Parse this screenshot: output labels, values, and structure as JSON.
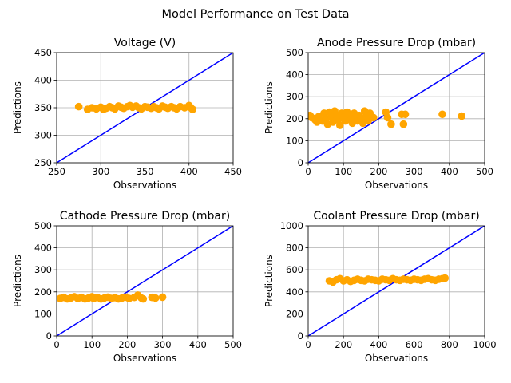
{
  "suptitle": "Model Performance on Test Data",
  "chart_data": [
    {
      "type": "scatter",
      "title": "Voltage (V)",
      "xlabel": "Observations",
      "ylabel": "Predictions",
      "xlim": [
        250,
        450
      ],
      "ylim": [
        250,
        450
      ],
      "xticks": [
        "250",
        "300",
        "350",
        "400",
        "450"
      ],
      "yticks": [
        "250",
        "300",
        "350",
        "400",
        "450"
      ],
      "grid": true,
      "reference_line": "y = x",
      "line_color": "#0000ff",
      "marker_color": "#ffa500",
      "points": [
        [
          275,
          352
        ],
        [
          285,
          347
        ],
        [
          290,
          350
        ],
        [
          295,
          348
        ],
        [
          300,
          351
        ],
        [
          303,
          347
        ],
        [
          306,
          349
        ],
        [
          310,
          352
        ],
        [
          313,
          350
        ],
        [
          316,
          348
        ],
        [
          320,
          353
        ],
        [
          323,
          351
        ],
        [
          326,
          349
        ],
        [
          330,
          352
        ],
        [
          333,
          354
        ],
        [
          336,
          351
        ],
        [
          340,
          353
        ],
        [
          343,
          350
        ],
        [
          346,
          348
        ],
        [
          350,
          352
        ],
        [
          353,
          351
        ],
        [
          357,
          349
        ],
        [
          360,
          352
        ],
        [
          363,
          350
        ],
        [
          366,
          348
        ],
        [
          370,
          353
        ],
        [
          373,
          351
        ],
        [
          376,
          349
        ],
        [
          380,
          352
        ],
        [
          383,
          350
        ],
        [
          386,
          348
        ],
        [
          390,
          352
        ],
        [
          395,
          350
        ],
        [
          400,
          354
        ],
        [
          402,
          350
        ],
        [
          404,
          347
        ]
      ]
    },
    {
      "type": "scatter",
      "title": "Anode Pressure Drop (mbar)",
      "xlabel": "Observations",
      "ylabel": "Predictions",
      "xlim": [
        0,
        500
      ],
      "ylim": [
        0,
        500
      ],
      "xticks": [
        "0",
        "100",
        "200",
        "300",
        "400",
        "500"
      ],
      "yticks": [
        "0",
        "100",
        "200",
        "300",
        "400",
        "500"
      ],
      "grid": true,
      "reference_line": "y = x",
      "line_color": "#0000ff",
      "marker_color": "#ffa500",
      "points": [
        [
          5,
          215
        ],
        [
          10,
          205
        ],
        [
          20,
          195
        ],
        [
          25,
          185
        ],
        [
          30,
          210
        ],
        [
          40,
          190
        ],
        [
          45,
          225
        ],
        [
          50,
          200
        ],
        [
          55,
          175
        ],
        [
          60,
          230
        ],
        [
          65,
          210
        ],
        [
          70,
          185
        ],
        [
          75,
          235
        ],
        [
          80,
          215
        ],
        [
          85,
          195
        ],
        [
          90,
          170
        ],
        [
          95,
          225
        ],
        [
          100,
          205
        ],
        [
          105,
          190
        ],
        [
          110,
          230
        ],
        [
          115,
          215
        ],
        [
          120,
          195
        ],
        [
          125,
          180
        ],
        [
          130,
          225
        ],
        [
          135,
          205
        ],
        [
          140,
          190
        ],
        [
          145,
          215
        ],
        [
          150,
          200
        ],
        [
          155,
          180
        ],
        [
          160,
          235
        ],
        [
          165,
          210
        ],
        [
          170,
          190
        ],
        [
          175,
          225
        ],
        [
          185,
          205
        ],
        [
          220,
          230
        ],
        [
          225,
          205
        ],
        [
          235,
          175
        ],
        [
          265,
          220
        ],
        [
          270,
          175
        ],
        [
          275,
          220
        ],
        [
          380,
          220
        ],
        [
          435,
          212
        ]
      ]
    },
    {
      "type": "scatter",
      "title": "Cathode Pressure Drop (mbar)",
      "xlabel": "Observations",
      "ylabel": "Predictions",
      "xlim": [
        0,
        500
      ],
      "ylim": [
        0,
        500
      ],
      "xticks": [
        "0",
        "100",
        "200",
        "300",
        "400",
        "500"
      ],
      "yticks": [
        "0",
        "100",
        "200",
        "300",
        "400",
        "500"
      ],
      "grid": true,
      "reference_line": "y = x",
      "line_color": "#0000ff",
      "marker_color": "#ffa500",
      "points": [
        [
          10,
          170
        ],
        [
          20,
          175
        ],
        [
          30,
          168
        ],
        [
          40,
          172
        ],
        [
          50,
          178
        ],
        [
          60,
          170
        ],
        [
          70,
          175
        ],
        [
          80,
          168
        ],
        [
          90,
          172
        ],
        [
          100,
          178
        ],
        [
          105,
          170
        ],
        [
          115,
          175
        ],
        [
          125,
          168
        ],
        [
          135,
          172
        ],
        [
          145,
          176
        ],
        [
          155,
          170
        ],
        [
          165,
          174
        ],
        [
          175,
          168
        ],
        [
          185,
          172
        ],
        [
          195,
          176
        ],
        [
          205,
          170
        ],
        [
          220,
          175
        ],
        [
          230,
          185
        ],
        [
          240,
          172
        ],
        [
          245,
          168
        ],
        [
          270,
          175
        ],
        [
          280,
          172
        ],
        [
          300,
          176
        ]
      ]
    },
    {
      "type": "scatter",
      "title": "Coolant Pressure Drop (mbar)",
      "xlabel": "Observations",
      "ylabel": "Predictions",
      "xlim": [
        0,
        1000
      ],
      "ylim": [
        0,
        1000
      ],
      "xticks": [
        "0",
        "200",
        "400",
        "600",
        "800",
        "1000"
      ],
      "yticks": [
        "0",
        "200",
        "400",
        "600",
        "800",
        "1000"
      ],
      "grid": true,
      "reference_line": "y = x",
      "line_color": "#0000ff",
      "marker_color": "#ffa500",
      "points": [
        [
          120,
          500
        ],
        [
          140,
          490
        ],
        [
          160,
          510
        ],
        [
          180,
          520
        ],
        [
          200,
          500
        ],
        [
          220,
          510
        ],
        [
          240,
          495
        ],
        [
          260,
          505
        ],
        [
          280,
          515
        ],
        [
          300,
          505
        ],
        [
          320,
          500
        ],
        [
          340,
          515
        ],
        [
          360,
          510
        ],
        [
          380,
          505
        ],
        [
          400,
          500
        ],
        [
          420,
          515
        ],
        [
          440,
          510
        ],
        [
          460,
          505
        ],
        [
          480,
          520
        ],
        [
          500,
          510
        ],
        [
          520,
          505
        ],
        [
          540,
          515
        ],
        [
          560,
          510
        ],
        [
          580,
          505
        ],
        [
          600,
          515
        ],
        [
          620,
          510
        ],
        [
          640,
          505
        ],
        [
          660,
          515
        ],
        [
          680,
          520
        ],
        [
          700,
          510
        ],
        [
          720,
          505
        ],
        [
          740,
          515
        ],
        [
          760,
          520
        ],
        [
          775,
          525
        ]
      ]
    }
  ]
}
